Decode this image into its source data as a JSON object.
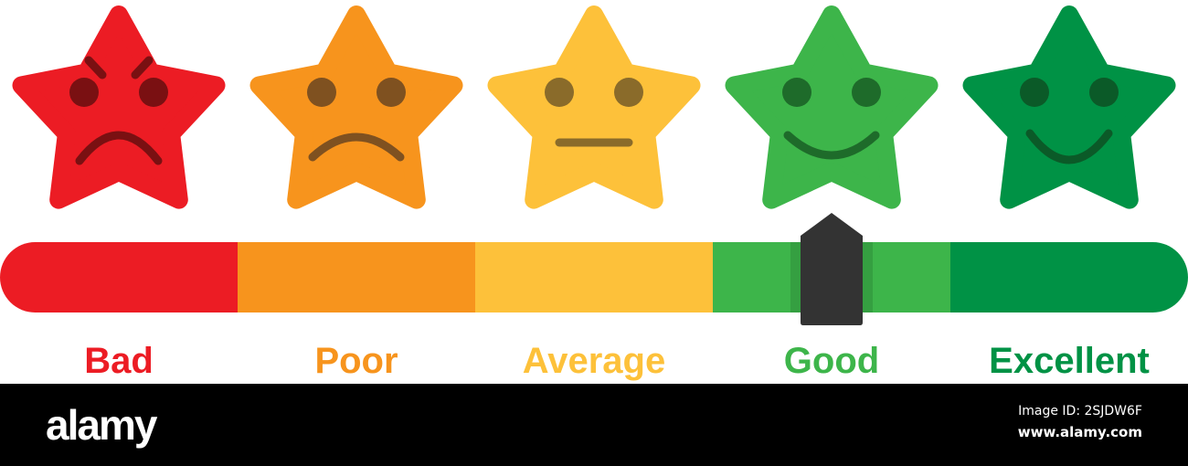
{
  "ratings": [
    {
      "label": "Bad",
      "color": "#EC1C24",
      "face_color": "#7A1012",
      "expression": "angry"
    },
    {
      "label": "Poor",
      "color": "#F7941D",
      "face_color": "#7F5120",
      "expression": "sad"
    },
    {
      "label": "Average",
      "color": "#FDC13A",
      "face_color": "#8A6B2A",
      "expression": "neutral"
    },
    {
      "label": "Good",
      "color": "#3DB54A",
      "face_color": "#1E6B2A",
      "expression": "smile"
    },
    {
      "label": "Excellent",
      "color": "#009245",
      "face_color": "#0B5A28",
      "expression": "happy"
    }
  ],
  "indicator": {
    "selected": "Good",
    "value_fraction": 0.7,
    "color": "#333333"
  },
  "footer": {
    "logo": "alamy",
    "image_id": "Image ID: 2SJDW6F",
    "site": "www.alamy.com"
  }
}
